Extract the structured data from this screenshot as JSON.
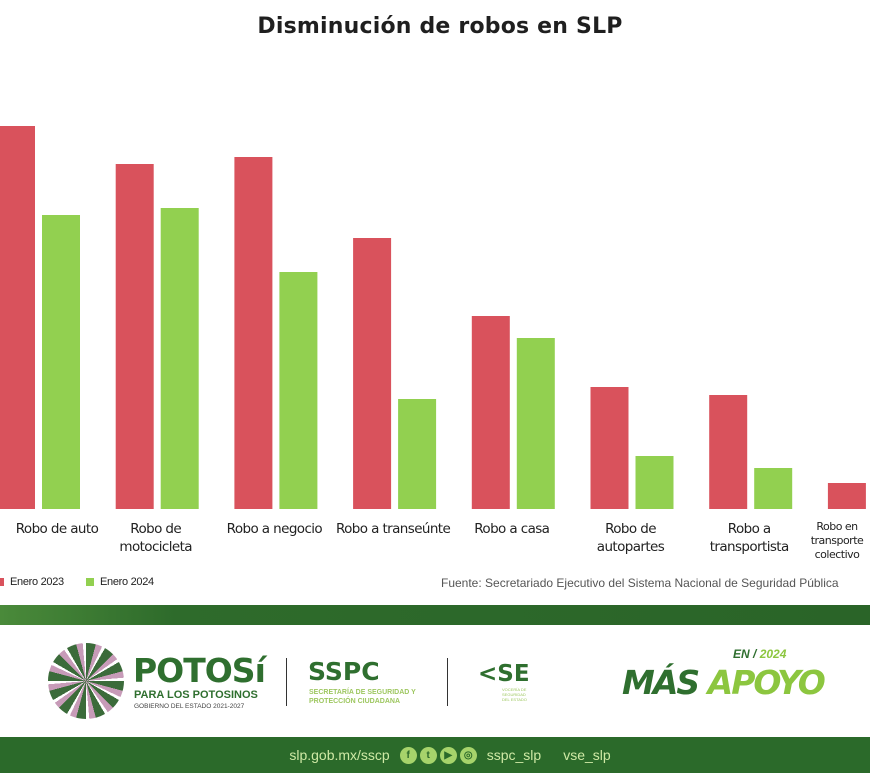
{
  "chart_data": {
    "type": "bar",
    "title": "Disminución de robos en SLP",
    "categories": [
      [
        "Robo de auto"
      ],
      [
        "Robo de",
        "motocicleta"
      ],
      [
        "Robo a negocio"
      ],
      [
        "Robo a transeúnte"
      ],
      [
        "Robo a casa"
      ],
      [
        "Robo de",
        "autopartes"
      ],
      [
        "Robo a",
        "transportista"
      ],
      [
        "Robo en transporte",
        "colectivo"
      ]
    ],
    "series": [
      {
        "name": "Enero 2023",
        "color": "#d9525c",
        "values": [
          383,
          345,
          352,
          271,
          193,
          122,
          114,
          26
        ]
      },
      {
        "name": "Enero 2024",
        "color": "#92d050",
        "values": [
          294,
          301,
          237,
          110,
          171,
          53,
          41,
          null
        ]
      }
    ],
    "xlabel": "",
    "ylabel": "",
    "ylim": [
      0,
      400
    ],
    "value_units": "relative (no axis shown)",
    "grid": false,
    "legend_position": "bottom-left",
    "source": "Fuente: Secretariado Ejecutivo del Sistema Nacional de Seguridad Pública"
  },
  "footer": {
    "logo_potosi": "POTOSí",
    "logo_potosi_sub": "PARA LOS POTOSINOS",
    "logo_potosi_sub2": "GOBIERNO DEL ESTADO 2021-2027",
    "logo_sspc": "SSPC",
    "logo_sspc_sub": "SECRETARÍA DE SEGURIDAD Y PROTECCIÓN CIUDADANA",
    "logo_vse": "<SE",
    "logo_vse_sub": "VOCERÍA DE SEGURIDAD DEL ESTADO",
    "campaign_en": "EN",
    "campaign_year": "2024",
    "campaign_mas": "MÁS",
    "campaign_apoyo": "APOYO",
    "website": "slp.gob.mx/sscp",
    "handle_sspc": "sspc_slp",
    "handle_vse": "vse_slp"
  }
}
